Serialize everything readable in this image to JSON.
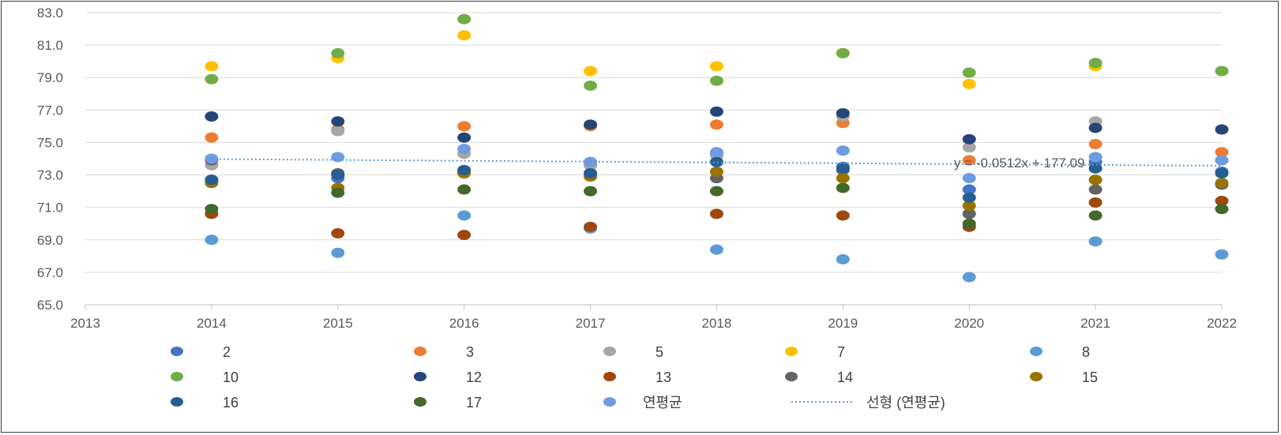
{
  "chart_data": {
    "type": "scatter",
    "title": "",
    "xlabel": "",
    "ylabel": "",
    "xlim": [
      2013,
      2022
    ],
    "ylim": [
      65.0,
      83.0
    ],
    "x_ticks": [
      "2013",
      "2014",
      "2015",
      "2016",
      "2017",
      "2018",
      "2019",
      "2020",
      "2021",
      "2022"
    ],
    "y_ticks": [
      "65.0",
      "67.0",
      "69.0",
      "71.0",
      "73.0",
      "75.0",
      "77.0",
      "79.0",
      "81.0",
      "83.0"
    ],
    "grid": "horizontal",
    "legend_position": "bottom",
    "x": [
      2014,
      2015,
      2016,
      2017,
      2018,
      2019,
      2020,
      2021,
      2022
    ],
    "series": [
      {
        "name": "2",
        "color": "#4472C4",
        "values": [
          72.7,
          72.8,
          73.2,
          73.6,
          74.3,
          73.5,
          72.1,
          73.8,
          73.2
        ]
      },
      {
        "name": "3",
        "color": "#ED7D31",
        "values": [
          75.3,
          75.8,
          76.0,
          76.0,
          76.1,
          76.2,
          73.9,
          74.9,
          74.4
        ]
      },
      {
        "name": "5",
        "color": "#A5A5A5",
        "values": [
          73.6,
          75.7,
          74.3,
          73.6,
          74.2,
          76.6,
          74.7,
          76.3,
          73.9
        ]
      },
      {
        "name": "7",
        "color": "#FFC000",
        "values": [
          79.7,
          80.2,
          81.6,
          79.4,
          79.7,
          80.5,
          78.6,
          79.7,
          79.4
        ]
      },
      {
        "name": "8",
        "color": "#5B9BD5",
        "values": [
          69.0,
          68.2,
          70.5,
          69.7,
          68.4,
          67.8,
          66.7,
          68.9,
          68.1
        ]
      },
      {
        "name": "10",
        "color": "#70AD47",
        "values": [
          78.9,
          80.5,
          82.6,
          78.5,
          78.8,
          80.5,
          79.3,
          79.9,
          79.4
        ]
      },
      {
        "name": "12",
        "color": "#264478",
        "values": [
          76.6,
          76.3,
          75.3,
          76.1,
          76.9,
          76.8,
          75.2,
          75.9,
          75.8
        ]
      },
      {
        "name": "13",
        "color": "#9E480E",
        "values": [
          70.6,
          69.4,
          69.3,
          69.8,
          70.6,
          70.5,
          69.8,
          71.3,
          71.4
        ]
      },
      {
        "name": "14",
        "color": "#636363",
        "values": [
          73.9,
          73.1,
          73.1,
          73.1,
          72.8,
          73.3,
          70.6,
          72.1,
          72.4
        ]
      },
      {
        "name": "15",
        "color": "#997300",
        "values": [
          72.5,
          72.2,
          73.1,
          72.9,
          73.2,
          72.8,
          71.1,
          72.7,
          72.5
        ]
      },
      {
        "name": "16",
        "color": "#255E91",
        "values": [
          72.7,
          73.0,
          73.3,
          73.1,
          73.8,
          73.4,
          71.6,
          73.4,
          73.1
        ]
      },
      {
        "name": "17",
        "color": "#43682B",
        "values": [
          70.9,
          71.9,
          72.1,
          72.0,
          72.0,
          72.2,
          70.0,
          70.5,
          70.9
        ]
      },
      {
        "name": "연평균",
        "color": "#6F9BE0",
        "values": [
          74.0,
          74.1,
          74.6,
          73.8,
          74.4,
          74.5,
          72.8,
          74.1,
          73.9
        ]
      }
    ],
    "trendline": {
      "name": "선형 (연평균)",
      "color": "#5B9BD5",
      "equation": "y = -0.0512x + 177.09",
      "slope": -0.0512,
      "intercept": 177.09
    },
    "legend_entries": [
      {
        "label": "2",
        "color": "#4472C4",
        "kind": "marker"
      },
      {
        "label": "3",
        "color": "#ED7D31",
        "kind": "marker"
      },
      {
        "label": "5",
        "color": "#A5A5A5",
        "kind": "marker"
      },
      {
        "label": "7",
        "color": "#FFC000",
        "kind": "marker"
      },
      {
        "label": "8",
        "color": "#5B9BD5",
        "kind": "marker"
      },
      {
        "label": "10",
        "color": "#70AD47",
        "kind": "marker"
      },
      {
        "label": "12",
        "color": "#264478",
        "kind": "marker"
      },
      {
        "label": "13",
        "color": "#9E480E",
        "kind": "marker"
      },
      {
        "label": "14",
        "color": "#636363",
        "kind": "marker"
      },
      {
        "label": "15",
        "color": "#997300",
        "kind": "marker"
      },
      {
        "label": "16",
        "color": "#255E91",
        "kind": "marker"
      },
      {
        "label": "17",
        "color": "#43682B",
        "kind": "marker"
      },
      {
        "label": "연평균",
        "color": "#6F9BE0",
        "kind": "marker"
      },
      {
        "label": "선형 (연평균)",
        "color": "#5B9BD5",
        "kind": "dotted-line"
      }
    ]
  }
}
